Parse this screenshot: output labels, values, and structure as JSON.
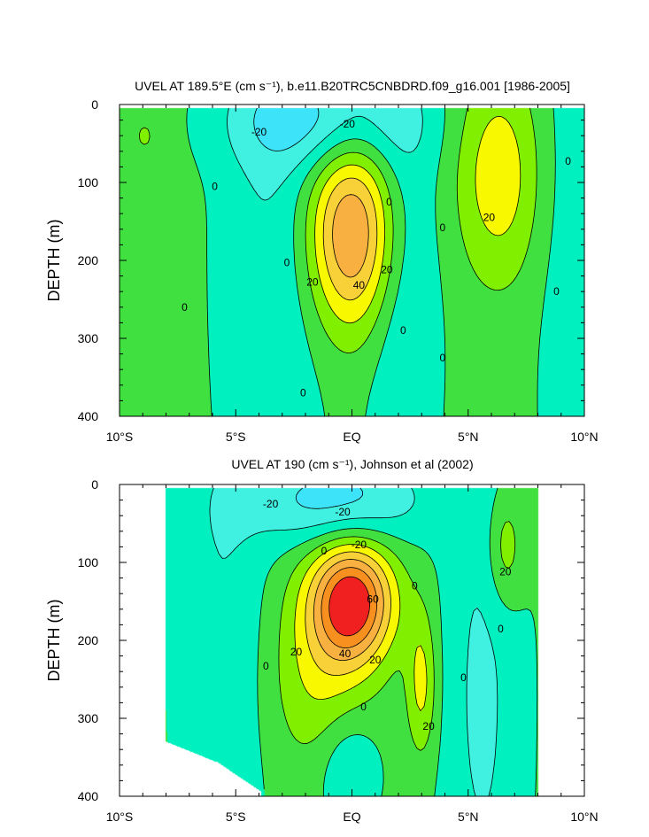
{
  "chart_data": [
    {
      "type": "contour",
      "title": "UVEL AT 189.5°E (cm s⁻¹), b.e11.B20TRC5CNBDRD.f09_g16.001 [1986-2005]",
      "xlabel": "",
      "ylabel": "DEPTH (m)",
      "xlim": [
        -10,
        10
      ],
      "ylim": [
        400,
        0
      ],
      "xticks": [
        -10,
        -5,
        0,
        5,
        10
      ],
      "xtick_labels": [
        "10°S",
        "5°S",
        "EQ",
        "5°N",
        "10°N"
      ],
      "yticks": [
        0,
        100,
        200,
        300,
        400
      ],
      "ytick_labels": [
        "0",
        "100",
        "200",
        "300",
        "400"
      ],
      "data_extent": {
        "lat": [
          -10,
          10
        ],
        "depth": [
          5,
          400
        ]
      },
      "contour_interval": 10,
      "contour_labels": [
        {
          "text": "-20",
          "lat": -4.0,
          "depth": 35
        },
        {
          "text": "-20",
          "lat": -0.2,
          "depth": 25
        },
        {
          "text": "0",
          "lat": -5.9,
          "depth": 105
        },
        {
          "text": "0",
          "lat": 1.6,
          "depth": 125
        },
        {
          "text": "0",
          "lat": -7.2,
          "depth": 260
        },
        {
          "text": "0",
          "lat": -2.8,
          "depth": 203
        },
        {
          "text": "0",
          "lat": 2.2,
          "depth": 290
        },
        {
          "text": "0",
          "lat": 3.9,
          "depth": 158
        },
        {
          "text": "0",
          "lat": 3.9,
          "depth": 325
        },
        {
          "text": "0",
          "lat": -2.1,
          "depth": 370
        },
        {
          "text": "0",
          "lat": 9.3,
          "depth": 73
        },
        {
          "text": "0",
          "lat": 8.8,
          "depth": 240
        },
        {
          "text": "20",
          "lat": -1.7,
          "depth": 228
        },
        {
          "text": "20",
          "lat": 1.5,
          "depth": 212
        },
        {
          "text": "20",
          "lat": 5.9,
          "depth": 145
        },
        {
          "text": "40",
          "lat": 0.3,
          "depth": 232
        }
      ]
    },
    {
      "type": "contour",
      "title": "UVEL AT 190 (cm s⁻¹), Johnson et al (2002)",
      "xlabel": "",
      "ylabel": "DEPTH (m)",
      "xlim": [
        -10,
        10
      ],
      "ylim": [
        400,
        0
      ],
      "xticks": [
        -10,
        -5,
        0,
        5,
        10
      ],
      "xtick_labels": [
        "10°S",
        "5°S",
        "EQ",
        "5°N",
        "10°N"
      ],
      "yticks": [
        0,
        100,
        200,
        300,
        400
      ],
      "ytick_labels": [
        "0",
        "100",
        "200",
        "300",
        "400"
      ],
      "data_extent": {
        "lat": [
          -8,
          8
        ],
        "depth": [
          5,
          400
        ]
      },
      "contour_interval": 10,
      "contour_labels": [
        {
          "text": "-20",
          "lat": -3.5,
          "depth": 25
        },
        {
          "text": "-20",
          "lat": -0.4,
          "depth": 35
        },
        {
          "text": "-20",
          "lat": 0.3,
          "depth": 77
        },
        {
          "text": "0",
          "lat": -1.2,
          "depth": 85
        },
        {
          "text": "0",
          "lat": 2.7,
          "depth": 130
        },
        {
          "text": "0",
          "lat": -3.7,
          "depth": 233
        },
        {
          "text": "0",
          "lat": 0.5,
          "depth": 285
        },
        {
          "text": "0",
          "lat": 4.8,
          "depth": 248
        },
        {
          "text": "0",
          "lat": 6.4,
          "depth": 185
        },
        {
          "text": "20",
          "lat": -2.4,
          "depth": 215
        },
        {
          "text": "20",
          "lat": 1.0,
          "depth": 225
        },
        {
          "text": "20",
          "lat": 3.3,
          "depth": 310
        },
        {
          "text": "20",
          "lat": 6.6,
          "depth": 112
        },
        {
          "text": "40",
          "lat": -0.3,
          "depth": 217
        },
        {
          "text": "60",
          "lat": 0.9,
          "depth": 147
        }
      ]
    }
  ],
  "colors": {
    "fill_levels": [
      {
        "min": -999,
        "max": -30,
        "color": "#10c0f8"
      },
      {
        "min": -30,
        "max": -20,
        "color": "#3de3f8"
      },
      {
        "min": -20,
        "max": -10,
        "color": "#40f0e0"
      },
      {
        "min": -10,
        "max": 0,
        "color": "#00f0c0"
      },
      {
        "min": 0,
        "max": 10,
        "color": "#40e040"
      },
      {
        "min": 10,
        "max": 20,
        "color": "#80f000"
      },
      {
        "min": 20,
        "max": 30,
        "color": "#f8f800"
      },
      {
        "min": 30,
        "max": 40,
        "color": "#f8d038"
      },
      {
        "min": 40,
        "max": 50,
        "color": "#f8b040"
      },
      {
        "min": 50,
        "max": 60,
        "color": "#f89020"
      },
      {
        "min": 60,
        "max": 999,
        "color": "#f02020"
      }
    ]
  }
}
